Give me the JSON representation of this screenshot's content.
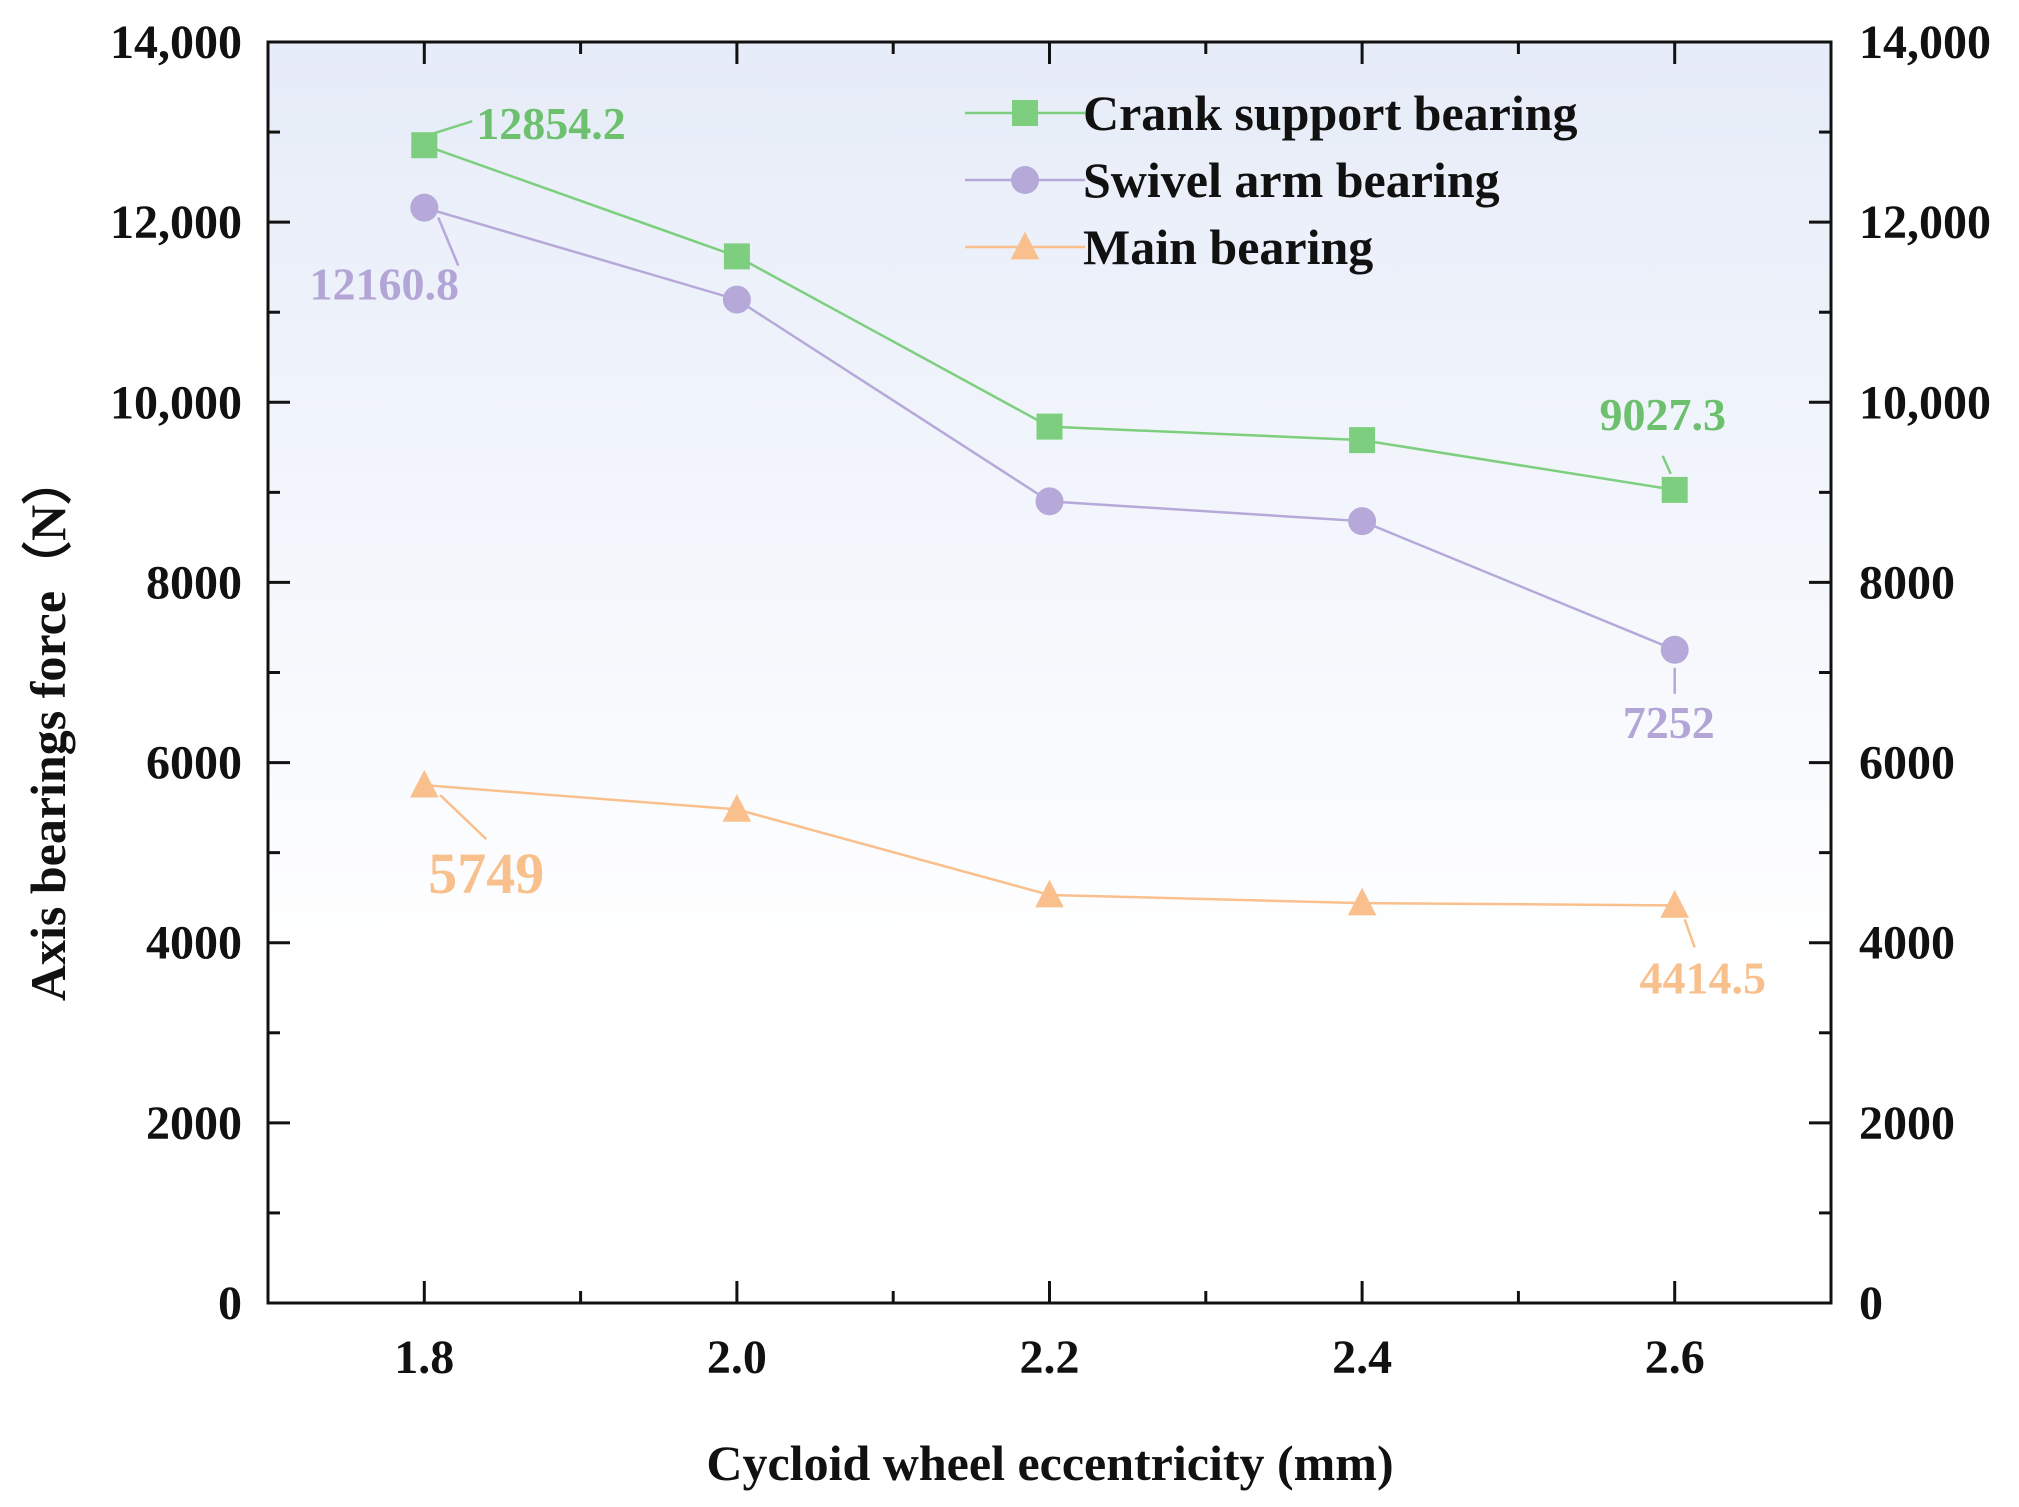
{
  "chart_data": {
    "type": "line",
    "xlabel": "Cycloid wheel eccentricity (mm)",
    "ylabel": "Axis bearings force（N）",
    "x": [
      1.8,
      2.0,
      2.2,
      2.4,
      2.6
    ],
    "x_tick_labels": [
      "1.8",
      "2.0",
      "2.2",
      "2.4",
      "2.6"
    ],
    "xlim": [
      1.7,
      2.7
    ],
    "ylim": [
      0,
      14000
    ],
    "y_tick_values": [
      0,
      2000,
      4000,
      6000,
      8000,
      10000,
      12000,
      14000
    ],
    "y_tick_labels": [
      "0",
      "2000",
      "4000",
      "6000",
      "8000",
      "10,000",
      "12,000",
      "14,000"
    ],
    "right_axis_mirror": true,
    "legend_position": "top-right",
    "series": [
      {
        "name": "Crank support bearing",
        "marker": "square",
        "color": "#7dcf7f",
        "label_color": "#6cc06e",
        "values": [
          12854.2,
          11620,
          9730,
          9580,
          9027.3
        ]
      },
      {
        "name": "Swivel arm bearing",
        "marker": "circle",
        "color": "#b6a9d9",
        "label_color": "#b3a6d7",
        "values": [
          12160.8,
          11140,
          8900,
          8680,
          7252
        ]
      },
      {
        "name": "Main bearing",
        "marker": "triangle",
        "color": "#f9c08e",
        "label_color": "#f8c08c",
        "values": [
          5749,
          5480,
          4530,
          4440,
          4414.5
        ]
      }
    ],
    "annotations": [
      {
        "series": 0,
        "point": 0,
        "text": "12854.2"
      },
      {
        "series": 1,
        "point": 0,
        "text": "12160.8"
      },
      {
        "series": 0,
        "point": 4,
        "text": "9027.3"
      },
      {
        "series": 1,
        "point": 4,
        "text": "7252"
      },
      {
        "series": 2,
        "point": 0,
        "text": "5749"
      },
      {
        "series": 2,
        "point": 4,
        "text": "4414.5"
      }
    ]
  }
}
